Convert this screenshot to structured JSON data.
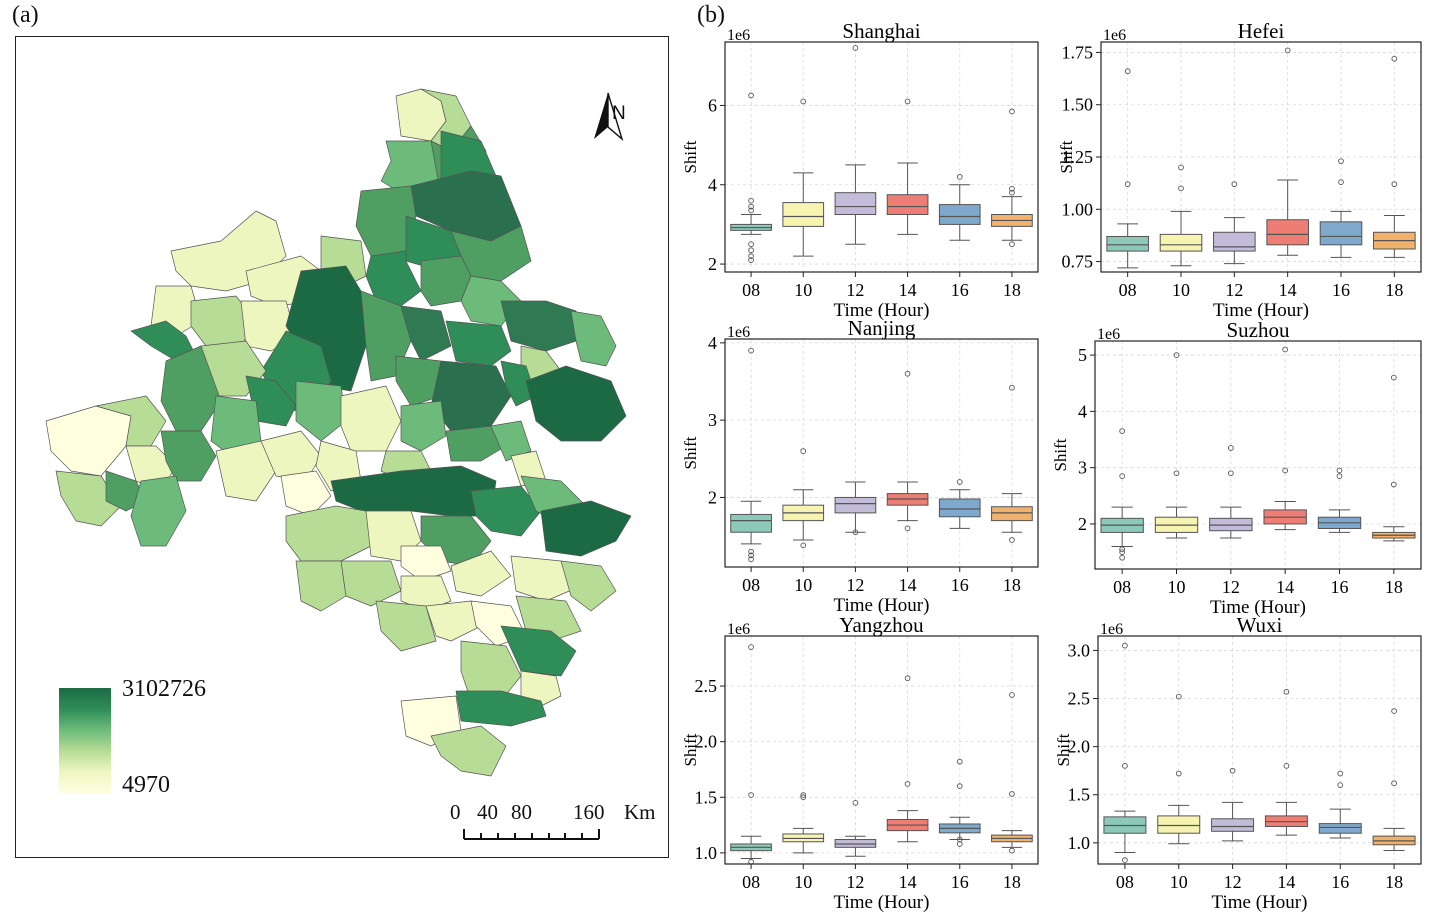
{
  "panels": {
    "a": "(a)",
    "b": "(b)"
  },
  "map": {
    "legend": {
      "max_label": "3102726",
      "min_label": "4970",
      "colors": [
        "#1b6a44",
        "#2f8d58",
        "#6cbb7a",
        "#b6dc95",
        "#eef6c0",
        "#ffffe0"
      ]
    },
    "north_label": "N",
    "scale_bar": {
      "ticks": [
        "0",
        "40",
        "80",
        "160"
      ],
      "unit": "Km"
    }
  },
  "chart_data": [
    {
      "type": "box",
      "title": "Shanghai",
      "exponent": "1e6",
      "xlabel": "Time (Hour)",
      "ylabel": "Shift",
      "categories": [
        "08",
        "10",
        "12",
        "14",
        "16",
        "18"
      ],
      "ylim": [
        1.8,
        7.6
      ],
      "yticks": [
        2,
        4,
        6
      ],
      "ytick_labels": [
        "2",
        "4",
        "6"
      ],
      "boxes": [
        {
          "q1": 2.85,
          "median": 2.92,
          "q3": 3.0,
          "whislo": 2.75,
          "whishi": 3.25,
          "fliers": [
            2.1,
            2.2,
            2.35,
            2.5,
            3.35,
            3.45,
            3.6,
            6.25
          ]
        },
        {
          "q1": 2.95,
          "median": 3.2,
          "q3": 3.55,
          "whislo": 2.2,
          "whishi": 4.3,
          "fliers": [
            6.1
          ]
        },
        {
          "q1": 3.25,
          "median": 3.45,
          "q3": 3.8,
          "whislo": 2.5,
          "whishi": 4.5,
          "fliers": [
            7.45
          ]
        },
        {
          "q1": 3.25,
          "median": 3.45,
          "q3": 3.75,
          "whislo": 2.75,
          "whishi": 4.55,
          "fliers": [
            6.1
          ]
        },
        {
          "q1": 3.0,
          "median": 3.2,
          "q3": 3.5,
          "whislo": 2.6,
          "whishi": 4.0,
          "fliers": [
            4.2
          ]
        },
        {
          "q1": 2.95,
          "median": 3.1,
          "q3": 3.25,
          "whislo": 2.6,
          "whishi": 3.7,
          "fliers": [
            2.5,
            3.8,
            3.9,
            5.85
          ]
        }
      ]
    },
    {
      "type": "box",
      "title": "Hefei",
      "exponent": "1e6",
      "xlabel": "Time (Hour)",
      "ylabel": "Shift",
      "categories": [
        "08",
        "10",
        "12",
        "14",
        "16",
        "18"
      ],
      "ylim": [
        0.7,
        1.8
      ],
      "yticks": [
        0.75,
        1.0,
        1.25,
        1.5,
        1.75
      ],
      "ytick_labels": [
        "0.75",
        "1.00",
        "1.25",
        "1.50",
        "1.75"
      ],
      "boxes": [
        {
          "q1": 0.8,
          "median": 0.83,
          "q3": 0.87,
          "whislo": 0.72,
          "whishi": 0.93,
          "fliers": [
            1.12,
            1.66
          ]
        },
        {
          "q1": 0.8,
          "median": 0.83,
          "q3": 0.88,
          "whislo": 0.73,
          "whishi": 0.99,
          "fliers": [
            1.1,
            1.2
          ]
        },
        {
          "q1": 0.8,
          "median": 0.82,
          "q3": 0.89,
          "whislo": 0.74,
          "whishi": 0.96,
          "fliers": [
            1.12
          ]
        },
        {
          "q1": 0.83,
          "median": 0.88,
          "q3": 0.95,
          "whislo": 0.78,
          "whishi": 1.14,
          "fliers": [
            1.76
          ]
        },
        {
          "q1": 0.83,
          "median": 0.87,
          "q3": 0.94,
          "whislo": 0.77,
          "whishi": 0.99,
          "fliers": [
            1.13,
            1.23
          ]
        },
        {
          "q1": 0.81,
          "median": 0.85,
          "q3": 0.89,
          "whislo": 0.77,
          "whishi": 0.97,
          "fliers": [
            1.12,
            1.72
          ]
        }
      ]
    },
    {
      "type": "box",
      "title": "Nanjing",
      "exponent": "1e6",
      "xlabel": "Time (Hour)",
      "ylabel": "Shift",
      "categories": [
        "08",
        "10",
        "12",
        "14",
        "16",
        "18"
      ],
      "ylim": [
        1.1,
        4.05
      ],
      "yticks": [
        2,
        3,
        4
      ],
      "ytick_labels": [
        "2",
        "3",
        "4"
      ],
      "boxes": [
        {
          "q1": 1.55,
          "median": 1.7,
          "q3": 1.78,
          "whislo": 1.4,
          "whishi": 1.95,
          "fliers": [
            1.2,
            1.25,
            1.3,
            3.9
          ]
        },
        {
          "q1": 1.7,
          "median": 1.8,
          "q3": 1.9,
          "whislo": 1.45,
          "whishi": 2.1,
          "fliers": [
            1.38,
            2.6
          ]
        },
        {
          "q1": 1.8,
          "median": 1.92,
          "q3": 2.0,
          "whislo": 1.55,
          "whishi": 2.2,
          "fliers": [
            1.55
          ]
        },
        {
          "q1": 1.9,
          "median": 1.98,
          "q3": 2.05,
          "whislo": 1.7,
          "whishi": 2.2,
          "fliers": [
            1.6,
            3.6
          ]
        },
        {
          "q1": 1.75,
          "median": 1.85,
          "q3": 1.98,
          "whislo": 1.6,
          "whishi": 2.1,
          "fliers": [
            2.2
          ]
        },
        {
          "q1": 1.7,
          "median": 1.8,
          "q3": 1.88,
          "whislo": 1.55,
          "whishi": 2.05,
          "fliers": [
            1.45,
            3.42
          ]
        }
      ]
    },
    {
      "type": "box",
      "title": "Suzhou",
      "exponent": "1e6",
      "xlabel": "Time (Hour)",
      "ylabel": "Shift",
      "categories": [
        "08",
        "10",
        "12",
        "14",
        "16",
        "18"
      ],
      "ylim": [
        1.2,
        5.25
      ],
      "yticks": [
        2,
        3,
        4,
        5
      ],
      "ytick_labels": [
        "2",
        "3",
        "4",
        "5"
      ],
      "boxes": [
        {
          "q1": 1.85,
          "median": 1.98,
          "q3": 2.1,
          "whislo": 1.6,
          "whishi": 2.3,
          "fliers": [
            1.4,
            1.5,
            1.55,
            2.85,
            3.65
          ]
        },
        {
          "q1": 1.85,
          "median": 1.98,
          "q3": 2.12,
          "whislo": 1.75,
          "whishi": 2.3,
          "fliers": [
            2.9,
            5.0
          ]
        },
        {
          "q1": 1.88,
          "median": 1.98,
          "q3": 2.1,
          "whislo": 1.75,
          "whishi": 2.3,
          "fliers": [
            2.9,
            3.35
          ]
        },
        {
          "q1": 2.0,
          "median": 2.12,
          "q3": 2.25,
          "whislo": 1.9,
          "whishi": 2.4,
          "fliers": [
            2.95,
            5.1
          ]
        },
        {
          "q1": 1.92,
          "median": 2.02,
          "q3": 2.12,
          "whislo": 1.85,
          "whishi": 2.25,
          "fliers": [
            2.85,
            2.95
          ]
        },
        {
          "q1": 1.75,
          "median": 1.8,
          "q3": 1.85,
          "whislo": 1.7,
          "whishi": 1.95,
          "fliers": [
            2.7,
            4.6
          ]
        }
      ]
    },
    {
      "type": "box",
      "title": "Yangzhou",
      "exponent": "1e6",
      "xlabel": "Time (Hour)",
      "ylabel": "Shift",
      "categories": [
        "08",
        "10",
        "12",
        "14",
        "16",
        "18"
      ],
      "ylim": [
        0.9,
        2.95
      ],
      "yticks": [
        1.0,
        1.5,
        2.0,
        2.5
      ],
      "ytick_labels": [
        "1.0",
        "1.5",
        "2.0",
        "2.5"
      ],
      "boxes": [
        {
          "q1": 1.02,
          "median": 1.05,
          "q3": 1.08,
          "whislo": 0.95,
          "whishi": 1.15,
          "fliers": [
            0.92,
            1.52,
            2.85
          ]
        },
        {
          "q1": 1.1,
          "median": 1.13,
          "q3": 1.17,
          "whislo": 1.0,
          "whishi": 1.22,
          "fliers": [
            1.5,
            1.52
          ]
        },
        {
          "q1": 1.05,
          "median": 1.08,
          "q3": 1.12,
          "whislo": 0.97,
          "whishi": 1.15,
          "fliers": [
            1.45
          ]
        },
        {
          "q1": 1.2,
          "median": 1.25,
          "q3": 1.3,
          "whislo": 1.1,
          "whishi": 1.38,
          "fliers": [
            1.62,
            2.57
          ]
        },
        {
          "q1": 1.18,
          "median": 1.22,
          "q3": 1.26,
          "whislo": 1.12,
          "whishi": 1.32,
          "fliers": [
            1.08,
            1.12,
            1.6,
            1.82
          ]
        },
        {
          "q1": 1.1,
          "median": 1.13,
          "q3": 1.16,
          "whislo": 1.05,
          "whishi": 1.2,
          "fliers": [
            1.02,
            1.53,
            2.42
          ]
        }
      ]
    },
    {
      "type": "box",
      "title": "Wuxi",
      "exponent": "1e6",
      "xlabel": "Time (Hour)",
      "ylabel": "Shift",
      "categories": [
        "08",
        "10",
        "12",
        "14",
        "16",
        "18"
      ],
      "ylim": [
        0.78,
        3.15
      ],
      "yticks": [
        1.0,
        1.5,
        2.0,
        2.5,
        3.0
      ],
      "ytick_labels": [
        "1.0",
        "1.5",
        "2.0",
        "2.5",
        "3.0"
      ],
      "boxes": [
        {
          "q1": 1.1,
          "median": 1.18,
          "q3": 1.27,
          "whislo": 0.9,
          "whishi": 1.33,
          "fliers": [
            0.82,
            1.8,
            3.05
          ]
        },
        {
          "q1": 1.1,
          "median": 1.18,
          "q3": 1.28,
          "whislo": 0.99,
          "whishi": 1.39,
          "fliers": [
            1.72,
            2.52
          ]
        },
        {
          "q1": 1.12,
          "median": 1.17,
          "q3": 1.25,
          "whislo": 1.02,
          "whishi": 1.42,
          "fliers": [
            1.75
          ]
        },
        {
          "q1": 1.17,
          "median": 1.22,
          "q3": 1.28,
          "whislo": 1.08,
          "whishi": 1.42,
          "fliers": [
            1.8,
            2.57
          ]
        },
        {
          "q1": 1.1,
          "median": 1.16,
          "q3": 1.2,
          "whislo": 1.05,
          "whishi": 1.35,
          "fliers": [
            1.6,
            1.72
          ]
        },
        {
          "q1": 0.98,
          "median": 1.02,
          "q3": 1.07,
          "whislo": 0.92,
          "whishi": 1.15,
          "fliers": [
            1.62,
            2.37
          ]
        }
      ]
    }
  ]
}
